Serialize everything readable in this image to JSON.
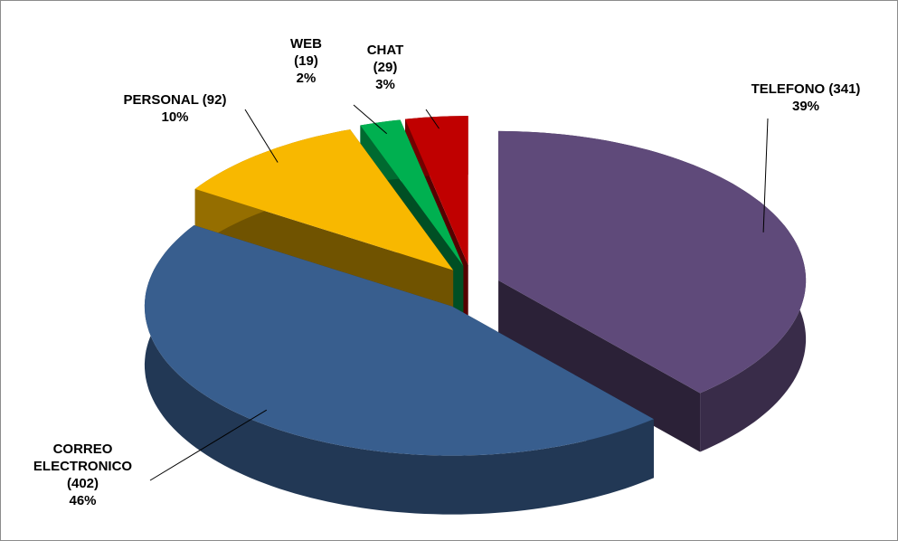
{
  "chart_data": {
    "type": "pie3d",
    "categories": [
      "TELEFONO",
      "CORREO ELECTRONICO",
      "PERSONAL",
      "WEB",
      "CHAT"
    ],
    "values": [
      341,
      402,
      92,
      19,
      29
    ],
    "value_labels": [
      "(341)",
      "(402)",
      "(92)",
      "(19)",
      "(29)"
    ],
    "percent_labels": [
      "39%",
      "46%",
      "10%",
      "2%",
      "3%"
    ],
    "colors": [
      "#5f4a7a",
      "#385e8e",
      "#f8b800",
      "#00b050",
      "#c00000"
    ],
    "exploded": true
  }
}
